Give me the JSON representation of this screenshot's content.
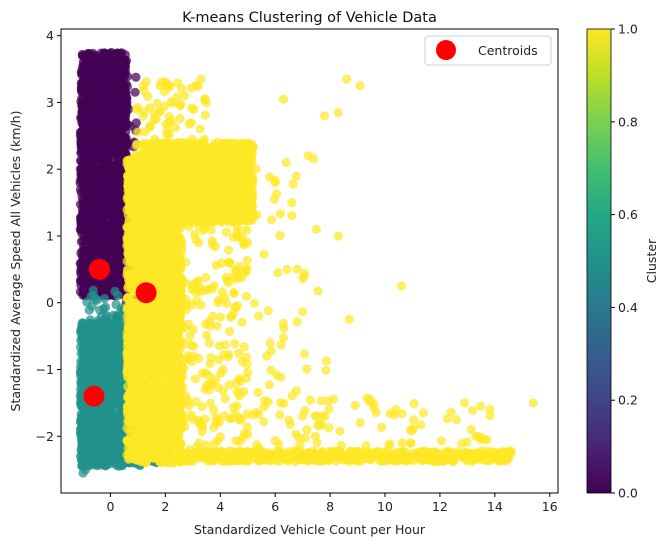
{
  "chart_data": {
    "type": "scatter",
    "title": "K-means Clustering of Vehicle Data",
    "xlabel": "Standardized Vehicle Count per Hour",
    "ylabel": "Standardized Average Speed All Vehicles (km/h)",
    "xlim": [
      -1.8,
      16.3
    ],
    "ylim": [
      -2.85,
      4.1
    ],
    "xticks": [
      "0",
      "2",
      "4",
      "6",
      "8",
      "10",
      "12",
      "14",
      "16"
    ],
    "xtick_values": [
      0,
      2,
      4,
      6,
      8,
      10,
      12,
      14,
      16
    ],
    "yticks": [
      "−2",
      "−1",
      "0",
      "1",
      "2",
      "3",
      "4"
    ],
    "ytick_values": [
      -2,
      -1,
      0,
      1,
      2,
      3,
      4
    ],
    "grid": false,
    "legend": {
      "position": "top-right",
      "entries": [
        {
          "label": "Centroids",
          "color": "#ff0000"
        }
      ]
    },
    "colormap": "viridis",
    "colors": {
      "cluster0": "#440154",
      "cluster1": "#fde725",
      "cluster2": "#21918c",
      "centroid": "#ff0000"
    },
    "centroids": [
      {
        "x": -0.4,
        "y": 0.5
      },
      {
        "x": 1.3,
        "y": 0.15
      },
      {
        "x": -0.6,
        "y": -1.4
      }
    ],
    "clusters": [
      {
        "label_value": 0.0,
        "color": "#440154",
        "regions": [
          {
            "x": [
              -1.1,
              0.6
            ],
            "y": [
              0.1,
              3.75
            ],
            "density": "dense"
          },
          {
            "x": [
              0.2,
              1.0
            ],
            "y": [
              -0.4,
              3.4
            ],
            "density": "sparse"
          }
        ],
        "points": [
          {
            "x": -1.0,
            "y": 3.7
          },
          {
            "x": -0.8,
            "y": 3.5
          },
          {
            "x": -0.5,
            "y": 3.3
          },
          {
            "x": 0.1,
            "y": 3.2
          },
          {
            "x": 0.4,
            "y": 3.4
          },
          {
            "x": 0.6,
            "y": 3.0
          },
          {
            "x": -0.3,
            "y": 2.8
          },
          {
            "x": 0.5,
            "y": 2.4
          },
          {
            "x": 0.8,
            "y": 2.0
          },
          {
            "x": 0.3,
            "y": 1.5
          },
          {
            "x": 0.6,
            "y": 0.9
          },
          {
            "x": 0.7,
            "y": 0.4
          },
          {
            "x": 0.5,
            "y": -0.1
          },
          {
            "x": -0.1,
            "y": 0.3
          },
          {
            "x": 0.9,
            "y": 1.2
          },
          {
            "x": 0.4,
            "y": 2.9
          }
        ]
      },
      {
        "label_value": 0.5,
        "color": "#21918c",
        "regions": [
          {
            "x": [
              -1.1,
              1.2
            ],
            "y": [
              -2.45,
              -0.3
            ],
            "density": "dense"
          },
          {
            "x": [
              1.0,
              2.3
            ],
            "y": [
              -2.4,
              -1.5
            ],
            "density": "dense"
          },
          {
            "x": [
              -0.9,
              0.5
            ],
            "y": [
              -0.4,
              0.2
            ],
            "density": "sparse"
          }
        ],
        "points": [
          {
            "x": -1.0,
            "y": -2.55
          },
          {
            "x": -0.9,
            "y": -2.5
          },
          {
            "x": 1.5,
            "y": -1.7
          },
          {
            "x": 1.9,
            "y": -2.2
          },
          {
            "x": 2.2,
            "y": -2.35
          },
          {
            "x": -0.6,
            "y": 0.1
          },
          {
            "x": 0.2,
            "y": -0.2
          },
          {
            "x": 0.9,
            "y": -1.0
          }
        ]
      },
      {
        "label_value": 1.0,
        "color": "#fde725",
        "regions": [
          {
            "x": [
              0.6,
              2.6
            ],
            "y": [
              -2.4,
              2.2
            ],
            "density": "dense"
          },
          {
            "x": [
              1.2,
              5.2
            ],
            "y": [
              1.2,
              2.4
            ],
            "density": "dense"
          },
          {
            "x": [
              2.2,
              14.6
            ],
            "y": [
              -2.38,
              -2.22
            ],
            "density": "dense"
          },
          {
            "x": [
              2.0,
              5.0
            ],
            "y": [
              -2.2,
              1.2
            ],
            "density": "sparse"
          },
          {
            "x": [
              0.9,
              3.5
            ],
            "y": [
              2.2,
              3.35
            ],
            "density": "sparse"
          },
          {
            "x": [
              4.0,
              8.0
            ],
            "y": [
              -2.2,
              2.2
            ],
            "density": "very-sparse"
          },
          {
            "x": [
              5.0,
              14.0
            ],
            "y": [
              -2.2,
              -1.4
            ],
            "density": "very-sparse"
          }
        ],
        "points": [
          {
            "x": 2.0,
            "y": 3.3
          },
          {
            "x": 3.3,
            "y": 3.35
          },
          {
            "x": 1.8,
            "y": 3.25
          },
          {
            "x": 6.3,
            "y": 3.05
          },
          {
            "x": 8.6,
            "y": 3.35
          },
          {
            "x": 9.1,
            "y": 3.25
          },
          {
            "x": 7.8,
            "y": 2.8
          },
          {
            "x": 8.3,
            "y": 2.85
          },
          {
            "x": 7.2,
            "y": 2.2
          },
          {
            "x": 6.4,
            "y": 2.1
          },
          {
            "x": 6.0,
            "y": 1.8
          },
          {
            "x": 6.6,
            "y": 1.5
          },
          {
            "x": 7.5,
            "y": 1.1
          },
          {
            "x": 8.3,
            "y": 1.0
          },
          {
            "x": 10.6,
            "y": 0.25
          },
          {
            "x": 8.7,
            "y": -0.25
          },
          {
            "x": 6.8,
            "y": 0.5
          },
          {
            "x": 6.1,
            "y": 0.45
          },
          {
            "x": 5.7,
            "y": -0.8
          },
          {
            "x": 5.4,
            "y": -0.2
          },
          {
            "x": 6.2,
            "y": -1.5
          },
          {
            "x": 7.0,
            "y": -1.7
          },
          {
            "x": 15.4,
            "y": -1.5
          },
          {
            "x": 12.9,
            "y": -1.5
          },
          {
            "x": 10.4,
            "y": -1.6
          },
          {
            "x": 9.1,
            "y": -1.8
          },
          {
            "x": 11.4,
            "y": -1.65
          },
          {
            "x": 13.4,
            "y": -2.0
          },
          {
            "x": 12.6,
            "y": -1.75
          },
          {
            "x": 14.5,
            "y": -2.32
          },
          {
            "x": 5.0,
            "y": 0.9
          },
          {
            "x": 4.3,
            "y": 0.3
          }
        ]
      }
    ],
    "colorbar": {
      "label": "Cluster",
      "ticks": [
        "0.0",
        "0.2",
        "0.4",
        "0.6",
        "0.8",
        "1.0"
      ],
      "tick_values": [
        0.0,
        0.2,
        0.4,
        0.6,
        0.8,
        1.0
      ],
      "range": [
        0.0,
        1.0
      ]
    }
  }
}
